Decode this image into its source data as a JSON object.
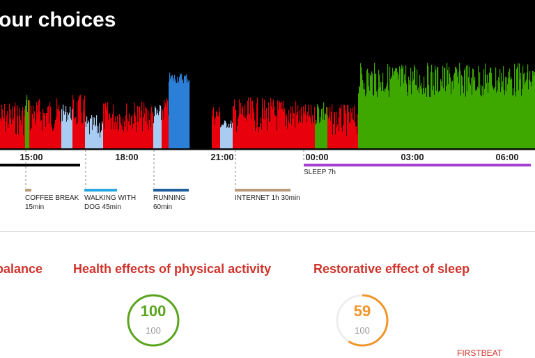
{
  "header": {
    "title": "our choices"
  },
  "chart_data": {
    "type": "bar",
    "title": "our choices",
    "x_unit": "time of day",
    "time_ticks": [
      "15:00",
      "18:00",
      "21:00",
      "00:00",
      "03:00",
      "06:00"
    ],
    "series_colors": {
      "stress": "#e8000d",
      "recovery": "#3ea800",
      "activity_light": "#a9cdf2",
      "activity_heavy": "#2b7fd6"
    },
    "levels": "stress/recovery levels rendered as dense vertical bars across the day",
    "periods": [
      {
        "label": "SLEEP  7h",
        "color": "#a63fd0"
      }
    ]
  },
  "activities": [
    {
      "line1": "COFFEE BREAK",
      "line2": "15min",
      "color": "#b89b7a"
    },
    {
      "line1": "WALKING WITH",
      "line2": "DOG 45min",
      "color": "#29a8e0"
    },
    {
      "line1": "RUNNING",
      "line2": "60min",
      "color": "#1f5f9e"
    },
    {
      "line1": "INTERNET  1h 30min",
      "line2": "",
      "color": "#b89b7a"
    }
  ],
  "metrics": [
    {
      "title": "balance"
    },
    {
      "title": "Health effects of physical activity",
      "value": "100",
      "max": "100",
      "fraction": 1.0,
      "color": "#5aa51e"
    },
    {
      "title": "Restorative effect of sleep",
      "value": "59",
      "max": "100",
      "fraction": 0.59,
      "color": "#f0952a"
    }
  ],
  "brand": {
    "logo_text": "FIRSTBEAT"
  }
}
